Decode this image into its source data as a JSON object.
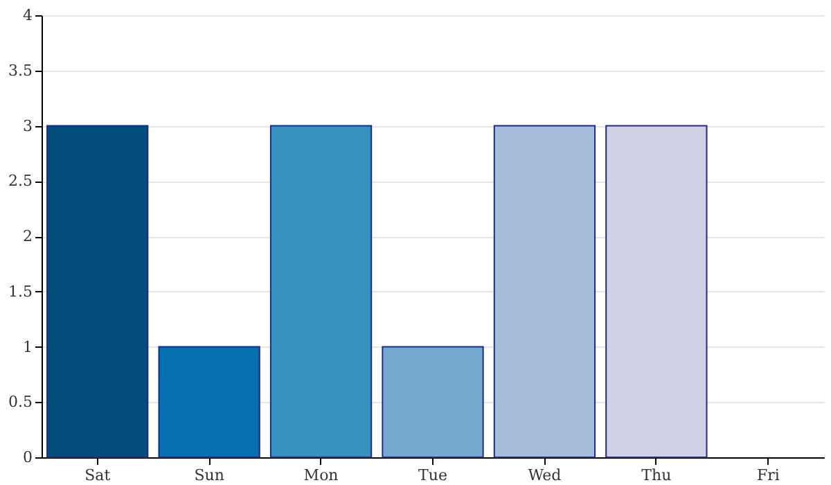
{
  "chart_data": {
    "type": "bar",
    "categories": [
      "Sat",
      "Sun",
      "Mon",
      "Tue",
      "Wed",
      "Thu",
      "Fri"
    ],
    "values": [
      3,
      1,
      3,
      1,
      3,
      3,
      0
    ],
    "colors": [
      "#034e7b",
      "#0570b0",
      "#3690c0",
      "#74a9cf",
      "#a6bddb",
      "#d0d1e6",
      "#f1eef6"
    ],
    "ylim": [
      0,
      4
    ],
    "yticks": [
      0,
      0.5,
      1,
      1.5,
      2,
      2.5,
      3,
      3.5,
      4
    ],
    "grid": "y",
    "legend": false
  }
}
